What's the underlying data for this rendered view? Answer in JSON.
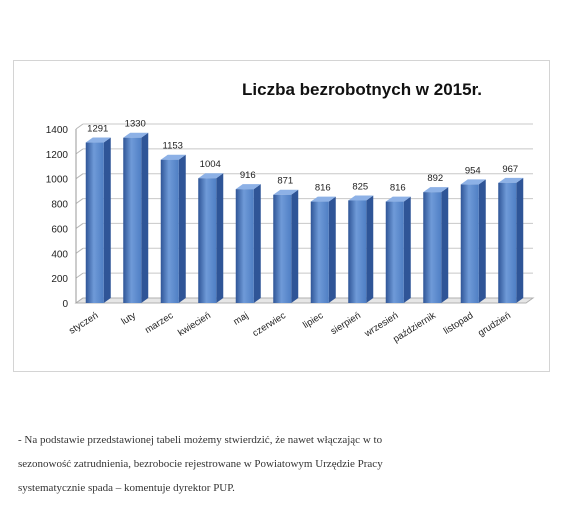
{
  "chart_data": {
    "type": "bar",
    "title": "Liczba bezrobotnych w 2015r.",
    "categories": [
      "styczeń",
      "luty",
      "marzec",
      "kwiecień",
      "maj",
      "czerwiec",
      "lipiec",
      "sierpień",
      "wrzesień",
      "październik",
      "listopad",
      "grudzień"
    ],
    "values": [
      1291,
      1330,
      1153,
      1004,
      916,
      871,
      816,
      825,
      816,
      892,
      954,
      967
    ],
    "ylim": [
      0,
      1400
    ],
    "yticks": [
      0,
      200,
      400,
      600,
      800,
      1000,
      1200,
      1400
    ],
    "grid": true,
    "legend": "none",
    "colors": {
      "bar_front": "#4f7fc4",
      "bar_light": "#6f9ad8",
      "bar_dark": "#2f5597",
      "bar_top": "#8db1e6"
    }
  },
  "caption": {
    "line1": "- Na podstawie przedstawionej tabeli możemy stwierdzić, że nawet włączając w to",
    "line2": "sezonowość zatrudnienia, bezrobocie rejestrowane w Powiatowym Urzędzie Pracy",
    "line3": "systematycznie spada – komentuje dyrektor PUP."
  }
}
